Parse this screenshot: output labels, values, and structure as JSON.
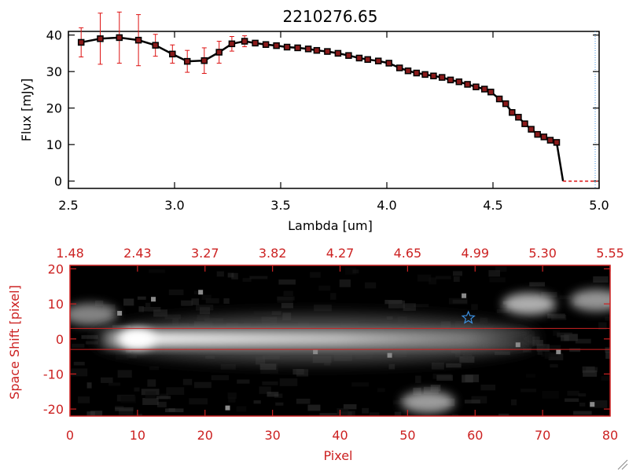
{
  "chart_data": [
    {
      "type": "line",
      "title": "2210276.65",
      "xlabel": "Lambda [um]",
      "ylabel": "Flux [mJy]",
      "xlim": [
        2.5,
        5.0
      ],
      "ylim": [
        -2,
        41
      ],
      "xticks": [
        "2.5",
        "3.0",
        "3.5",
        "4.0",
        "4.5",
        "5.0"
      ],
      "xtick_values": [
        2.5,
        3.0,
        3.5,
        4.0,
        4.5,
        5.0
      ],
      "yticks": [
        "0",
        "10",
        "20",
        "30",
        "40"
      ],
      "ytick_values": [
        0,
        10,
        20,
        30,
        40
      ],
      "series": [
        {
          "name": "flux",
          "x": [
            2.56,
            2.65,
            2.74,
            2.83,
            2.91,
            2.99,
            3.06,
            3.14,
            3.21,
            3.27,
            3.33,
            3.38,
            3.43,
            3.48,
            3.53,
            3.58,
            3.63,
            3.67,
            3.72,
            3.77,
            3.82,
            3.87,
            3.91,
            3.96,
            4.01,
            4.06,
            4.1,
            4.14,
            4.18,
            4.22,
            4.26,
            4.3,
            4.34,
            4.38,
            4.42,
            4.46,
            4.49,
            4.53,
            4.56,
            4.59,
            4.62,
            4.65,
            4.68,
            4.71,
            4.74,
            4.77,
            4.8,
            4.83,
            4.88,
            4.93,
            4.98
          ],
          "y": [
            38,
            39,
            39.3,
            38.6,
            37.2,
            34.8,
            32.8,
            33.0,
            35.3,
            37.6,
            38.3,
            37.8,
            37.4,
            37.1,
            36.7,
            36.5,
            36.2,
            35.8,
            35.5,
            35.0,
            34.4,
            33.7,
            33.3,
            32.9,
            32.3,
            31.0,
            30.2,
            29.6,
            29.2,
            28.8,
            28.4,
            27.7,
            27.2,
            26.5,
            25.8,
            25.2,
            24.4,
            22.5,
            21.2,
            18.8,
            17.5,
            15.7,
            14.2,
            12.8,
            12.1,
            11.2,
            10.6,
            0,
            0,
            0,
            0
          ],
          "yerr": [
            4,
            7,
            7,
            7,
            3,
            2.5,
            3,
            3.5,
            3,
            2,
            1.5,
            0,
            0,
            0,
            0,
            0,
            0,
            0,
            0,
            0,
            0,
            0,
            0,
            0,
            0,
            0,
            0,
            0,
            0,
            0,
            0,
            0,
            0,
            0,
            0,
            0,
            0,
            0,
            0,
            0,
            0,
            0,
            0,
            0,
            0,
            0,
            0,
            0,
            0,
            0,
            0
          ]
        }
      ]
    },
    {
      "type": "heatmap",
      "xlabel": "Pixel",
      "ylabel": "Space Shift [pixel]",
      "xlim": [
        0,
        80
      ],
      "ylim": [
        -22,
        21
      ],
      "xticks": [
        "0",
        "10",
        "20",
        "30",
        "40",
        "50",
        "60",
        "70",
        "80"
      ],
      "xtick_values": [
        0,
        10,
        20,
        30,
        40,
        50,
        60,
        70,
        80
      ],
      "yticks": [
        "20",
        "10",
        "0",
        "-10",
        "-20"
      ],
      "ytick_values": [
        20,
        10,
        0,
        -10,
        -20
      ],
      "top_axis_label_values": [
        0,
        10,
        20,
        30,
        40,
        50,
        60,
        70,
        80
      ],
      "top_axis_labels": [
        "1.48",
        "2.43",
        "3.27",
        "3.82",
        "4.27",
        "4.65",
        "4.99",
        "5.30",
        "5.55"
      ],
      "aperture_lines": [
        3,
        -3
      ],
      "star_marker": {
        "x": 59,
        "y": 6
      },
      "trace": {
        "x_start": 5,
        "x_end": 68,
        "peak_x": 10,
        "center_y": 0
      },
      "blobs": [
        {
          "x": 68,
          "y": 10,
          "brightness": 0.55
        },
        {
          "x": 78,
          "y": 11,
          "brightness": 0.4
        },
        {
          "x": 53,
          "y": -18,
          "brightness": 0.45
        },
        {
          "x": 3,
          "y": 7,
          "brightness": 0.3
        }
      ]
    }
  ],
  "colors": {
    "axis_red": "#cc2222",
    "error_red": "#dd1111",
    "marker_fill": "#8a1a1a",
    "star": "#3b8fe0"
  }
}
